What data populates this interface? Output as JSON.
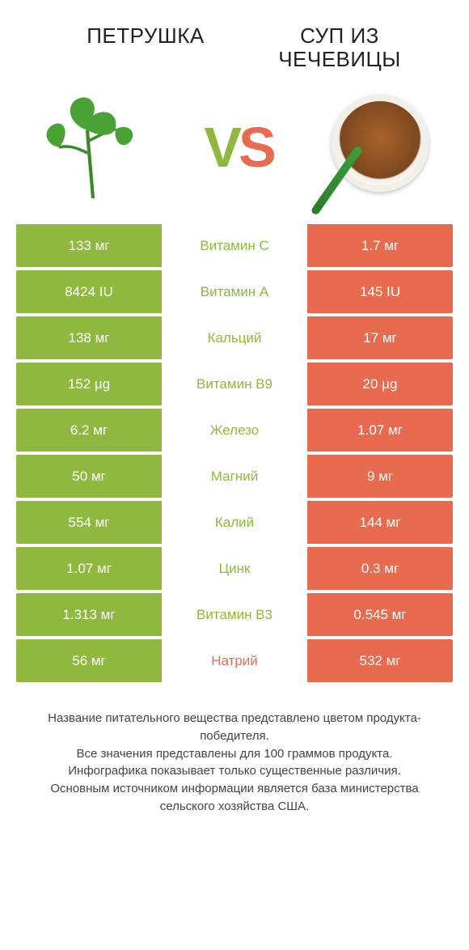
{
  "products": {
    "left": {
      "title": "ПЕТРУШКА"
    },
    "right": {
      "title": "СУП ИЗ\nЧЕЧЕВИЦЫ"
    }
  },
  "vs": {
    "v": "V",
    "s": "S"
  },
  "colors": {
    "green": "#8fb93e",
    "orange": "#e96b4f",
    "row_bg": "#ffffff",
    "text": "#333333"
  },
  "table": {
    "rows": [
      {
        "left": "133 мг",
        "label": "Витамин C",
        "right": "1.7 мг",
        "winner": "left"
      },
      {
        "left": "8424 IU",
        "label": "Витамин A",
        "right": "145 IU",
        "winner": "left"
      },
      {
        "left": "138 мг",
        "label": "Кальций",
        "right": "17 мг",
        "winner": "left"
      },
      {
        "left": "152 µg",
        "label": "Витамин B9",
        "right": "20 µg",
        "winner": "left"
      },
      {
        "left": "6.2 мг",
        "label": "Железо",
        "right": "1.07 мг",
        "winner": "left"
      },
      {
        "left": "50 мг",
        "label": "Магний",
        "right": "9 мг",
        "winner": "left"
      },
      {
        "left": "554 мг",
        "label": "Калий",
        "right": "144 мг",
        "winner": "left"
      },
      {
        "left": "1.07 мг",
        "label": "Цинк",
        "right": "0.3 мг",
        "winner": "left"
      },
      {
        "left": "1.313 мг",
        "label": "Витамин B3",
        "right": "0.545 мг",
        "winner": "left"
      },
      {
        "left": "56 мг",
        "label": "Натрий",
        "right": "532 мг",
        "winner": "right"
      }
    ]
  },
  "footer": {
    "line1": "Название питательного вещества представлено цветом продукта-победителя.",
    "line2": "Все значения представлены для 100 граммов продукта.",
    "line3": "Инфографика показывает только существенные различия.",
    "line4": "Основным источником информации является база министерства сельского хозяйства США."
  }
}
